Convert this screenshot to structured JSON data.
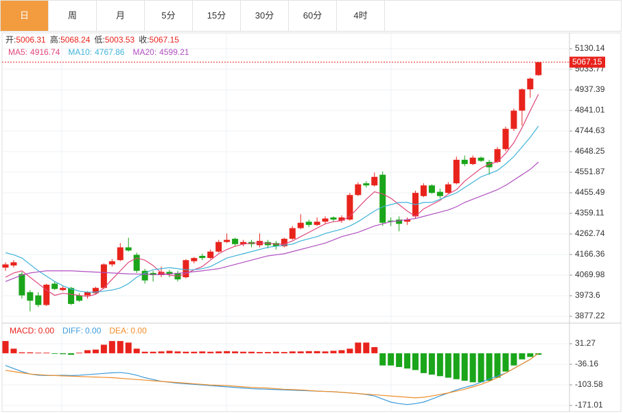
{
  "tabs": [
    "日",
    "周",
    "月",
    "5分",
    "15分",
    "30分",
    "60分",
    "4时"
  ],
  "selected_tab": "日",
  "chart_data": [
    {
      "type": "candlestick",
      "ohlc_labels": [
        "开:",
        "高:",
        "低:",
        "收:"
      ],
      "up_color": "#e8231c",
      "down_color": "#1aa51a",
      "open": [
        4105,
        4115,
        4075,
        3990,
        3975,
        3930,
        4030,
        4000,
        4010,
        3975,
        3975,
        3985,
        4010,
        4120,
        4140,
        4200,
        4165,
        4090,
        4080,
        4070,
        4085,
        4080,
        4060,
        4135,
        4160,
        4150,
        4180,
        4225,
        4240,
        4215,
        4225,
        4210,
        4225,
        4220,
        4205,
        4240,
        4290,
        4320,
        4305,
        4320,
        4340,
        4325,
        4330,
        4445,
        4500,
        4490,
        4540,
        4325,
        4330,
        4320,
        4345,
        4440,
        4490,
        4460,
        4455,
        4500,
        4610,
        4590,
        4620,
        4600,
        4600,
        4660,
        4755,
        4840,
        4940,
        5006.31
      ],
      "high": [
        4130,
        4140,
        4085,
        4000,
        3990,
        4030,
        4040,
        4020,
        4015,
        3985,
        3995,
        4015,
        4125,
        4145,
        4220,
        4245,
        4175,
        4100,
        4090,
        4110,
        4095,
        4090,
        4145,
        4155,
        4170,
        4190,
        4235,
        4265,
        4245,
        4235,
        4235,
        4265,
        4235,
        4230,
        4245,
        4300,
        4355,
        4330,
        4340,
        4345,
        4345,
        4350,
        4455,
        4505,
        4510,
        4550,
        4555,
        4340,
        4345,
        4340,
        4465,
        4500,
        4495,
        4475,
        4505,
        4625,
        4630,
        4630,
        4625,
        4610,
        4670,
        4765,
        4850,
        4945,
        4995,
        5068.24
      ],
      "low": [
        4090,
        4105,
        3960,
        3900,
        3920,
        3925,
        4000,
        3995,
        3930,
        3945,
        3960,
        3980,
        4005,
        4110,
        4135,
        4180,
        4080,
        4030,
        4040,
        4060,
        4060,
        4040,
        4055,
        4125,
        4140,
        4145,
        4175,
        4220,
        4205,
        4205,
        4200,
        4200,
        4195,
        4190,
        4200,
        4235,
        4285,
        4295,
        4300,
        4310,
        4320,
        4315,
        4325,
        4440,
        4480,
        4485,
        4300,
        4300,
        4275,
        4305,
        4335,
        4435,
        4450,
        4430,
        4450,
        4495,
        4580,
        4585,
        4600,
        4540,
        4595,
        4650,
        4745,
        4770,
        4900,
        5003.53
      ],
      "close": [
        4120,
        4130,
        3975,
        3950,
        3930,
        4025,
        4005,
        4010,
        3935,
        3950,
        3990,
        4010,
        4120,
        4135,
        4200,
        4185,
        4090,
        4045,
        4070,
        4085,
        4075,
        4050,
        4140,
        4150,
        4150,
        4180,
        4225,
        4235,
        4215,
        4225,
        4215,
        4230,
        4210,
        4205,
        4240,
        4290,
        4315,
        4305,
        4320,
        4335,
        4330,
        4340,
        4445,
        4495,
        4490,
        4530,
        4315,
        4320,
        4310,
        4330,
        4455,
        4490,
        4455,
        4440,
        4495,
        4610,
        4590,
        4620,
        4605,
        4575,
        4660,
        4755,
        4840,
        4940,
        4990,
        5067.15
      ],
      "series": [
        {
          "name": "MA5:",
          "color": "#e0457a",
          "values": [
            4060,
            4080,
            4090,
            4060,
            4030,
            4000,
            3975,
            3985,
            3980,
            3975,
            3970,
            3980,
            4010,
            4050,
            4090,
            4130,
            4150,
            4140,
            4115,
            4080,
            4070,
            4065,
            4075,
            4095,
            4110,
            4140,
            4170,
            4190,
            4205,
            4215,
            4220,
            4220,
            4220,
            4215,
            4215,
            4230,
            4250,
            4270,
            4290,
            4310,
            4320,
            4325,
            4345,
            4385,
            4425,
            4460,
            4450,
            4430,
            4400,
            4370,
            4345,
            4380,
            4400,
            4420,
            4450,
            4470,
            4510,
            4540,
            4570,
            4590,
            4600,
            4640,
            4690,
            4760,
            4840,
            4916.74
          ]
        },
        {
          "name": "MA10:",
          "color": "#3fb3d8",
          "values": [
            4175,
            4165,
            4150,
            4120,
            4090,
            4065,
            4040,
            4020,
            4005,
            3995,
            3990,
            3990,
            3995,
            4000,
            4010,
            4030,
            4060,
            4080,
            4095,
            4100,
            4105,
            4100,
            4095,
            4095,
            4100,
            4110,
            4130,
            4150,
            4160,
            4170,
            4180,
            4190,
            4200,
            4205,
            4210,
            4215,
            4230,
            4240,
            4250,
            4265,
            4275,
            4285,
            4300,
            4320,
            4345,
            4370,
            4390,
            4400,
            4410,
            4410,
            4400,
            4410,
            4410,
            4425,
            4440,
            4455,
            4480,
            4505,
            4530,
            4545,
            4560,
            4590,
            4625,
            4670,
            4715,
            4767.86
          ]
        },
        {
          "name": "MA20:",
          "color": "#b04fc0",
          "values": [
            4040,
            4055,
            4070,
            4080,
            4085,
            4090,
            4090,
            4090,
            4090,
            4088,
            4086,
            4084,
            4082,
            4080,
            4078,
            4076,
            4075,
            4074,
            4073,
            4072,
            4075,
            4078,
            4082,
            4086,
            4090,
            4095,
            4100,
            4110,
            4120,
            4130,
            4140,
            4150,
            4160,
            4165,
            4170,
            4180,
            4190,
            4200,
            4210,
            4220,
            4235,
            4250,
            4260,
            4270,
            4285,
            4300,
            4310,
            4320,
            4325,
            4330,
            4335,
            4345,
            4355,
            4365,
            4375,
            4390,
            4410,
            4425,
            4440,
            4455,
            4470,
            4490,
            4515,
            4540,
            4565,
            4599.21
          ]
        }
      ],
      "ylim": [
        3848.3,
        5204.0
      ],
      "yticks": [
        5130.14,
        5033.77,
        4937.39,
        4841.01,
        4744.63,
        4648.25,
        4551.87,
        4455.49,
        4359.11,
        4262.74,
        4166.36,
        4069.98,
        3973.6,
        3877.22
      ],
      "grid": true
    },
    {
      "type": "macd",
      "histogram": {
        "name": "MACD:",
        "label": "0.00",
        "up_color": "#e8231c",
        "down_color": "#1aa51a",
        "values": [
          40,
          15,
          3,
          3,
          2,
          2,
          -2,
          -3,
          -5,
          2,
          10,
          12,
          28,
          40,
          40,
          35,
          15,
          5,
          5,
          6,
          8,
          6,
          5,
          5,
          6,
          5,
          6,
          7,
          6,
          5,
          5,
          4,
          4,
          5,
          4,
          6,
          6,
          7,
          7,
          6,
          8,
          10,
          15,
          35,
          35,
          20,
          -40,
          -40,
          -45,
          -50,
          -55,
          -65,
          -70,
          -75,
          -80,
          -85,
          -90,
          -95,
          -95,
          -90,
          -80,
          -60,
          -40,
          -20,
          -12,
          -5
        ]
      },
      "series": [
        {
          "name": "DIFF:",
          "label": "0.00",
          "color": "#3a9ad9",
          "values": [
            -40,
            -50,
            -60,
            -68,
            -72,
            -73,
            -73,
            -72,
            -73,
            -72,
            -70,
            -68,
            -66,
            -64,
            -63,
            -66,
            -72,
            -80,
            -86,
            -92,
            -95,
            -98,
            -100,
            -102,
            -104,
            -106,
            -108,
            -110,
            -112,
            -114,
            -116,
            -117,
            -118,
            -119,
            -120,
            -121,
            -122,
            -123,
            -124,
            -125,
            -126,
            -128,
            -130,
            -132,
            -135,
            -140,
            -150,
            -160,
            -165,
            -168,
            -165,
            -160,
            -150,
            -140,
            -130,
            -120,
            -112,
            -105,
            -95,
            -85,
            -75,
            -65,
            -50,
            -35,
            -20,
            0
          ]
        },
        {
          "name": "DEA:",
          "label": "0.00",
          "color": "#f08c28",
          "values": [
            -56,
            -60,
            -64,
            -68,
            -70,
            -72,
            -73,
            -74,
            -75,
            -76,
            -77,
            -78,
            -79,
            -80,
            -82,
            -84,
            -86,
            -88,
            -90,
            -92,
            -94,
            -96,
            -98,
            -100,
            -102,
            -104,
            -105,
            -106,
            -108,
            -110,
            -112,
            -113,
            -114,
            -116,
            -118,
            -119,
            -120,
            -122,
            -124,
            -125,
            -126,
            -128,
            -130,
            -132,
            -134,
            -136,
            -138,
            -140,
            -142,
            -144,
            -146,
            -144,
            -140,
            -135,
            -130,
            -124,
            -118,
            -110,
            -102,
            -92,
            -80,
            -65,
            -50,
            -35,
            -20,
            0
          ]
        }
      ],
      "ylim": [
        -191.2,
        96.45
      ],
      "yticks": [
        31.27,
        -36.16,
        -103.58,
        -171.01
      ],
      "grid": true
    }
  ]
}
